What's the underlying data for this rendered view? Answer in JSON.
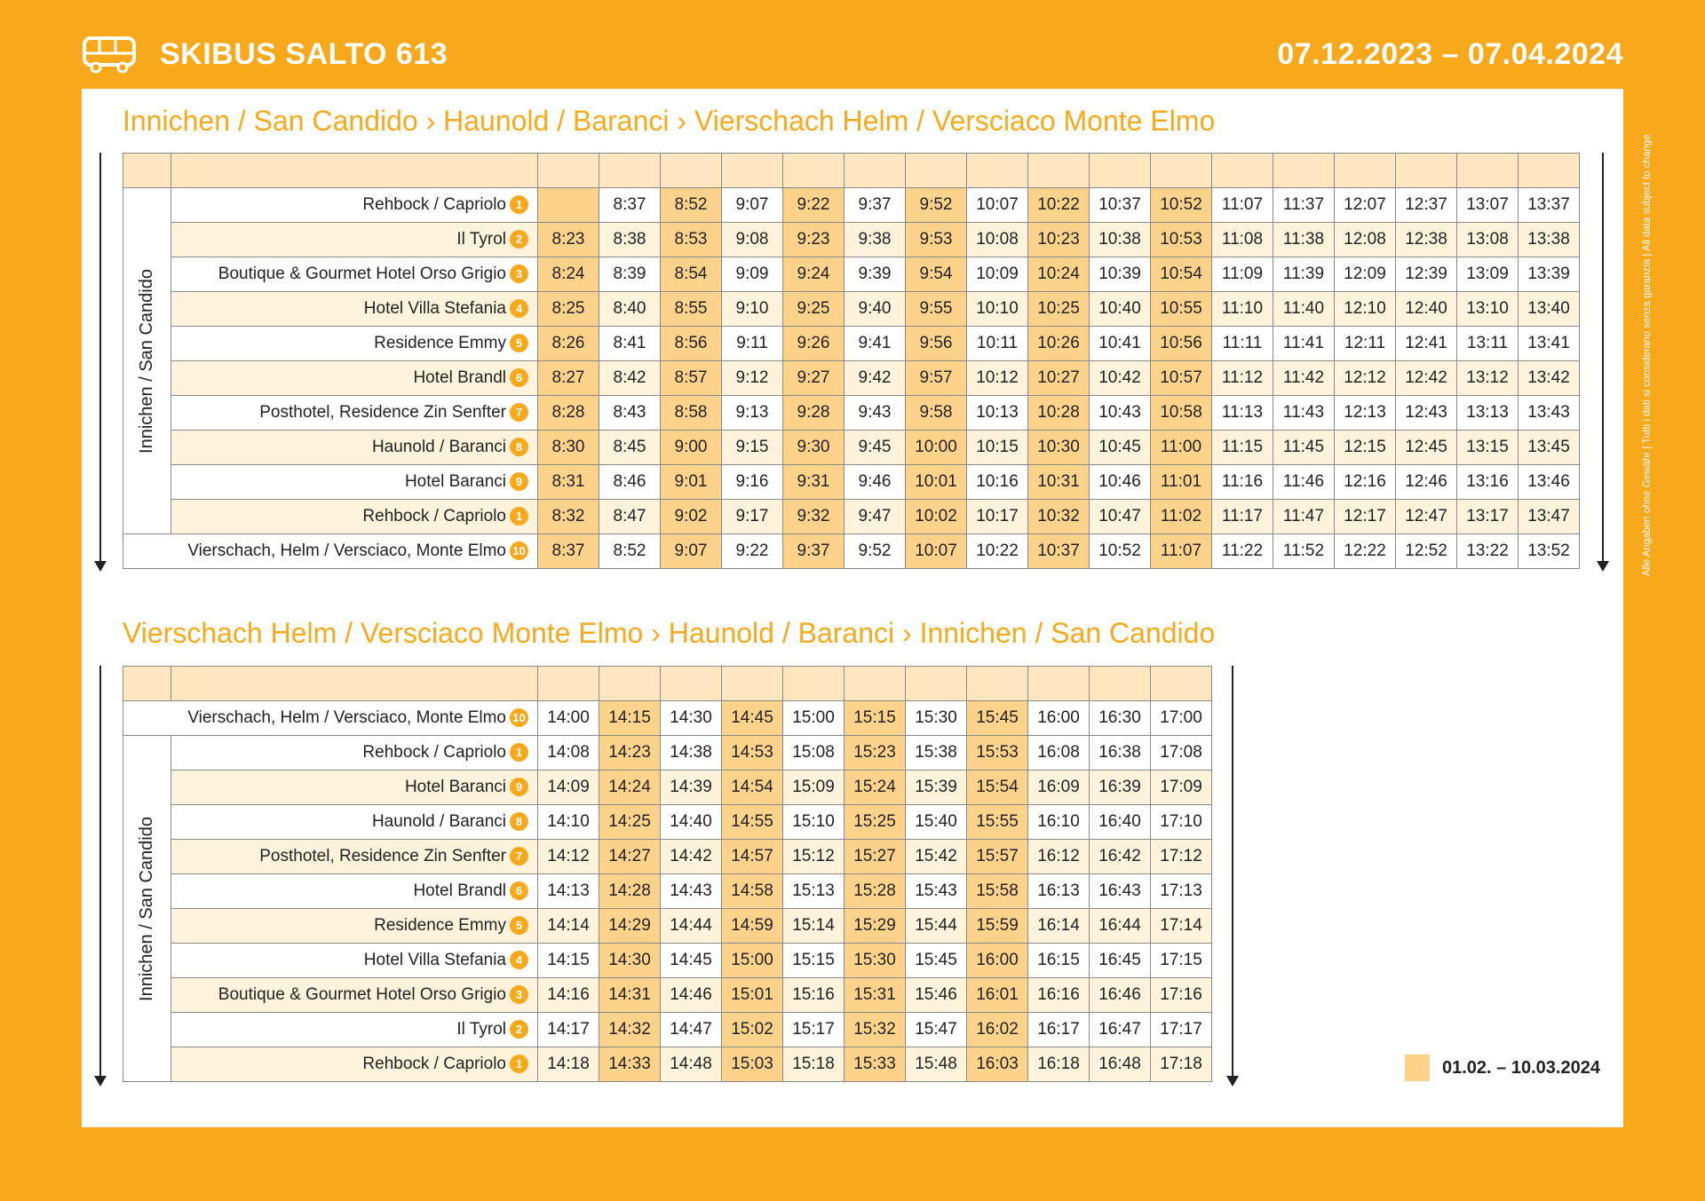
{
  "header": {
    "title": "SKIBUS SALTO 613",
    "dates": "07.12.2023 – 07.04.2024"
  },
  "disclaimer": "Alle Angaben ohne Gewähr  |  Tutti i dati si considerano senza garanzia  |  All data subject to change",
  "section1": {
    "title": "Innichen / San Candido › Haunold / Baranci › Vierschach Helm / Versciaco Monte Elmo",
    "group_label": "Innichen / San Candido",
    "highlight_cols": [
      0,
      2,
      4,
      6,
      8,
      10
    ],
    "rows": [
      {
        "stop": "Rehbock / Capriolo",
        "num": "1",
        "times": [
          "",
          "8:37",
          "8:52",
          "9:07",
          "9:22",
          "9:37",
          "9:52",
          "10:07",
          "10:22",
          "10:37",
          "10:52",
          "11:07",
          "11:37",
          "12:07",
          "12:37",
          "13:07",
          "13:37"
        ]
      },
      {
        "stop": "Il Tyrol",
        "num": "2",
        "times": [
          "8:23",
          "8:38",
          "8:53",
          "9:08",
          "9:23",
          "9:38",
          "9:53",
          "10:08",
          "10:23",
          "10:38",
          "10:53",
          "11:08",
          "11:38",
          "12:08",
          "12:38",
          "13:08",
          "13:38"
        ]
      },
      {
        "stop": "Boutique & Gourmet Hotel Orso Grigio",
        "num": "3",
        "times": [
          "8:24",
          "8:39",
          "8:54",
          "9:09",
          "9:24",
          "9:39",
          "9:54",
          "10:09",
          "10:24",
          "10:39",
          "10:54",
          "11:09",
          "11:39",
          "12:09",
          "12:39",
          "13:09",
          "13:39"
        ]
      },
      {
        "stop": "Hotel Villa Stefania",
        "num": "4",
        "times": [
          "8:25",
          "8:40",
          "8:55",
          "9:10",
          "9:25",
          "9:40",
          "9:55",
          "10:10",
          "10:25",
          "10:40",
          "10:55",
          "11:10",
          "11:40",
          "12:10",
          "12:40",
          "13:10",
          "13:40"
        ]
      },
      {
        "stop": "Residence Emmy",
        "num": "5",
        "times": [
          "8:26",
          "8:41",
          "8:56",
          "9:11",
          "9:26",
          "9:41",
          "9:56",
          "10:11",
          "10:26",
          "10:41",
          "10:56",
          "11:11",
          "11:41",
          "12:11",
          "12:41",
          "13:11",
          "13:41"
        ]
      },
      {
        "stop": "Hotel Brandl",
        "num": "6",
        "times": [
          "8:27",
          "8:42",
          "8:57",
          "9:12",
          "9:27",
          "9:42",
          "9:57",
          "10:12",
          "10:27",
          "10:42",
          "10:57",
          "11:12",
          "11:42",
          "12:12",
          "12:42",
          "13:12",
          "13:42"
        ]
      },
      {
        "stop": "Posthotel, Residence Zin Senfter",
        "num": "7",
        "times": [
          "8:28",
          "8:43",
          "8:58",
          "9:13",
          "9:28",
          "9:43",
          "9:58",
          "10:13",
          "10:28",
          "10:43",
          "10:58",
          "11:13",
          "11:43",
          "12:13",
          "12:43",
          "13:13",
          "13:43"
        ]
      },
      {
        "stop": "Haunold / Baranci",
        "num": "8",
        "times": [
          "8:30",
          "8:45",
          "9:00",
          "9:15",
          "9:30",
          "9:45",
          "10:00",
          "10:15",
          "10:30",
          "10:45",
          "11:00",
          "11:15",
          "11:45",
          "12:15",
          "12:45",
          "13:15",
          "13:45"
        ]
      },
      {
        "stop": "Hotel Baranci",
        "num": "9",
        "times": [
          "8:31",
          "8:46",
          "9:01",
          "9:16",
          "9:31",
          "9:46",
          "10:01",
          "10:16",
          "10:31",
          "10:46",
          "11:01",
          "11:16",
          "11:46",
          "12:16",
          "12:46",
          "13:16",
          "13:46"
        ]
      },
      {
        "stop": "Rehbock / Capriolo",
        "num": "1",
        "times": [
          "8:32",
          "8:47",
          "9:02",
          "9:17",
          "9:32",
          "9:47",
          "10:02",
          "10:17",
          "10:32",
          "10:47",
          "11:02",
          "11:17",
          "11:47",
          "12:17",
          "12:47",
          "13:17",
          "13:47"
        ]
      }
    ],
    "final_row": {
      "stop": "Vierschach, Helm / Versciaco, Monte Elmo",
      "num": "10",
      "times": [
        "8:37",
        "8:52",
        "9:07",
        "9:22",
        "9:37",
        "9:52",
        "10:07",
        "10:22",
        "10:37",
        "10:52",
        "11:07",
        "11:22",
        "11:52",
        "12:22",
        "12:52",
        "13:22",
        "13:52"
      ]
    }
  },
  "section2": {
    "title": "Vierschach Helm / Versciaco Monte Elmo › Haunold / Baranci › Innichen / San Candido",
    "group_label": "Innichen / San Candido",
    "highlight_cols": [
      1,
      3,
      5,
      7
    ],
    "first_row": {
      "stop": "Vierschach, Helm / Versciaco, Monte Elmo",
      "num": "10",
      "times": [
        "14:00",
        "14:15",
        "14:30",
        "14:45",
        "15:00",
        "15:15",
        "15:30",
        "15:45",
        "16:00",
        "16:30",
        "17:00"
      ]
    },
    "rows": [
      {
        "stop": "Rehbock / Capriolo",
        "num": "1",
        "times": [
          "14:08",
          "14:23",
          "14:38",
          "14:53",
          "15:08",
          "15:23",
          "15:38",
          "15:53",
          "16:08",
          "16:38",
          "17:08"
        ]
      },
      {
        "stop": "Hotel Baranci",
        "num": "9",
        "times": [
          "14:09",
          "14:24",
          "14:39",
          "14:54",
          "15:09",
          "15:24",
          "15:39",
          "15:54",
          "16:09",
          "16:39",
          "17:09"
        ]
      },
      {
        "stop": "Haunold / Baranci",
        "num": "8",
        "times": [
          "14:10",
          "14:25",
          "14:40",
          "14:55",
          "15:10",
          "15:25",
          "15:40",
          "15:55",
          "16:10",
          "16:40",
          "17:10"
        ]
      },
      {
        "stop": "Posthotel, Residence Zin Senfter",
        "num": "7",
        "times": [
          "14:12",
          "14:27",
          "14:42",
          "14:57",
          "15:12",
          "15:27",
          "15:42",
          "15:57",
          "16:12",
          "16:42",
          "17:12"
        ]
      },
      {
        "stop": "Hotel Brandl",
        "num": "6",
        "times": [
          "14:13",
          "14:28",
          "14:43",
          "14:58",
          "15:13",
          "15:28",
          "15:43",
          "15:58",
          "16:13",
          "16:43",
          "17:13"
        ]
      },
      {
        "stop": "Residence Emmy",
        "num": "5",
        "times": [
          "14:14",
          "14:29",
          "14:44",
          "14:59",
          "15:14",
          "15:29",
          "15:44",
          "15:59",
          "16:14",
          "16:44",
          "17:14"
        ]
      },
      {
        "stop": "Hotel Villa Stefania",
        "num": "4",
        "times": [
          "14:15",
          "14:30",
          "14:45",
          "15:00",
          "15:15",
          "15:30",
          "15:45",
          "16:00",
          "16:15",
          "16:45",
          "17:15"
        ]
      },
      {
        "stop": "Boutique & Gourmet Hotel Orso Grigio",
        "num": "3",
        "times": [
          "14:16",
          "14:31",
          "14:46",
          "15:01",
          "15:16",
          "15:31",
          "15:46",
          "16:01",
          "16:16",
          "16:46",
          "17:16"
        ]
      },
      {
        "stop": "Il Tyrol",
        "num": "2",
        "times": [
          "14:17",
          "14:32",
          "14:47",
          "15:02",
          "15:17",
          "15:32",
          "15:47",
          "16:02",
          "16:17",
          "16:47",
          "17:17"
        ]
      },
      {
        "stop": "Rehbock / Capriolo",
        "num": "1",
        "times": [
          "14:18",
          "14:33",
          "14:48",
          "15:03",
          "15:18",
          "15:33",
          "15:48",
          "16:03",
          "16:18",
          "16:48",
          "17:18"
        ]
      }
    ]
  },
  "legend": {
    "label": "01.02. – 10.03.2024"
  },
  "colors": {
    "brand": "#f8a91b",
    "highlight": "#fdd28a",
    "header_row": "#fde6c0",
    "stripe": "#fff3dc"
  },
  "icons": {
    "header": "bus-icon"
  }
}
